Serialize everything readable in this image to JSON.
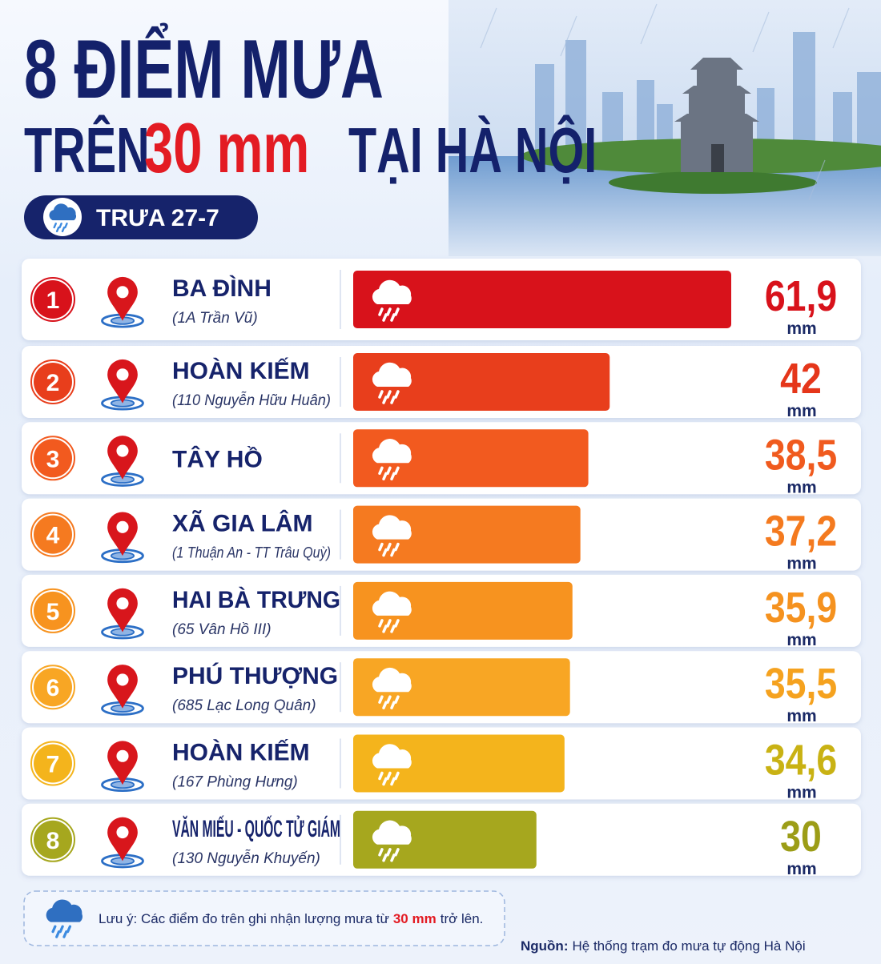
{
  "title": {
    "line1": "8 ĐIỂM MƯA",
    "line2_start": "TRÊN",
    "line2_highlight": "30 mm",
    "line2_end": "TẠI HÀ NỘI"
  },
  "time_label": "TRƯA 27-7",
  "chart_data": {
    "type": "bar",
    "orientation": "horizontal",
    "categories": [
      "BA ĐÌNH",
      "HOÀN KIẾM",
      "TÂY HỒ",
      "XÃ GIA LÂM",
      "HAI BÀ TRƯNG",
      "PHÚ THƯỢNG",
      "HOÀN KIẾM",
      "VĂN MIẾU - QUỐC TỬ GIÁM"
    ],
    "addresses": [
      "(1A Trần Vũ)",
      "(110 Nguyễn Hữu Huân)",
      null,
      "(1 Thuận An - TT Trâu Quỳ)",
      "(65 Vân Hồ III)",
      "(685 Lạc Long Quân)",
      "(167 Phùng Hưng)",
      "(130 Nguyễn Khuyến)"
    ],
    "ranks": [
      1,
      2,
      3,
      4,
      5,
      6,
      7,
      8
    ],
    "values": [
      61.9,
      42,
      38.5,
      37.2,
      35.9,
      35.5,
      34.6,
      30
    ],
    "value_labels": [
      "61,9",
      "42",
      "38,5",
      "37,2",
      "35,9",
      "35,5",
      "34,6",
      "30"
    ],
    "unit": "mm",
    "colors": [
      "#d8121b",
      "#e83e1c",
      "#f25a1f",
      "#f57a20",
      "#f7931f",
      "#f8a624",
      "#f4b41c",
      "#a6a71e"
    ],
    "value_label_colors": [
      "#d8121b",
      "#e5361a",
      "#f05a1e",
      "#f47a1f",
      "#f5921f",
      "#f5a21f",
      "#c9b214",
      "#9c9d17"
    ]
  },
  "note": {
    "prefix": "Lưu ý: Các điểm đo trên ghi nhận lượng mưa từ",
    "highlight": "30 mm",
    "suffix": "trở lên."
  },
  "source": {
    "label": "Nguồn:",
    "text": "Hệ thống trạm đo mưa tự động Hà Nội"
  }
}
